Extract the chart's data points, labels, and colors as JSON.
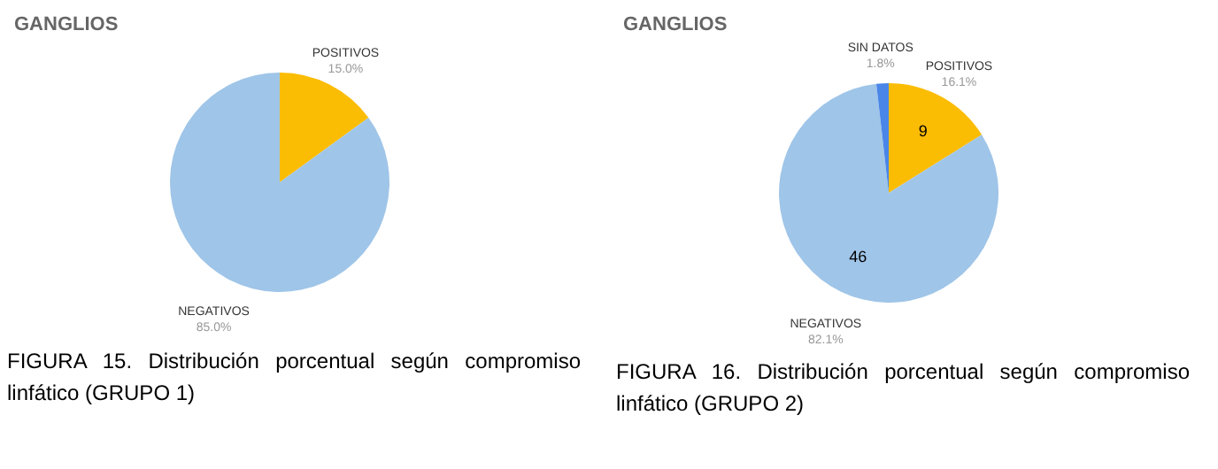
{
  "chart_data": [
    {
      "type": "pie",
      "title": "GANGLIOS",
      "categories": [
        "POSITIVOS",
        "NEGATIVOS"
      ],
      "values": [
        15,
        85
      ],
      "colors": [
        "#fbbc04",
        "#9fc5e8"
      ],
      "value_labels": [
        "15.0%",
        "85.0%"
      ],
      "legend": false,
      "annotations": [
        "FIGURA 15. Distribución porcentual según compromiso linfático (GRUPO 1)"
      ]
    },
    {
      "type": "pie",
      "title": "GANGLIOS",
      "categories": [
        "POSITIVOS",
        "NEGATIVOS",
        "SIN DATOS"
      ],
      "values": [
        16.1,
        82.1,
        1.8
      ],
      "colors": [
        "#fbbc04",
        "#9fc5e8",
        "#4a86e8"
      ],
      "value_labels": [
        "16.1%",
        "82.1%",
        "1.8%"
      ],
      "legend": false,
      "annotations": [
        {
          "text": "9",
          "x": "POSITIVOS"
        },
        {
          "text": "46",
          "x": "NEGATIVOS"
        },
        "FIGURA 16. Distribución porcentual según compromiso linfático (GRUPO 2)"
      ]
    }
  ]
}
